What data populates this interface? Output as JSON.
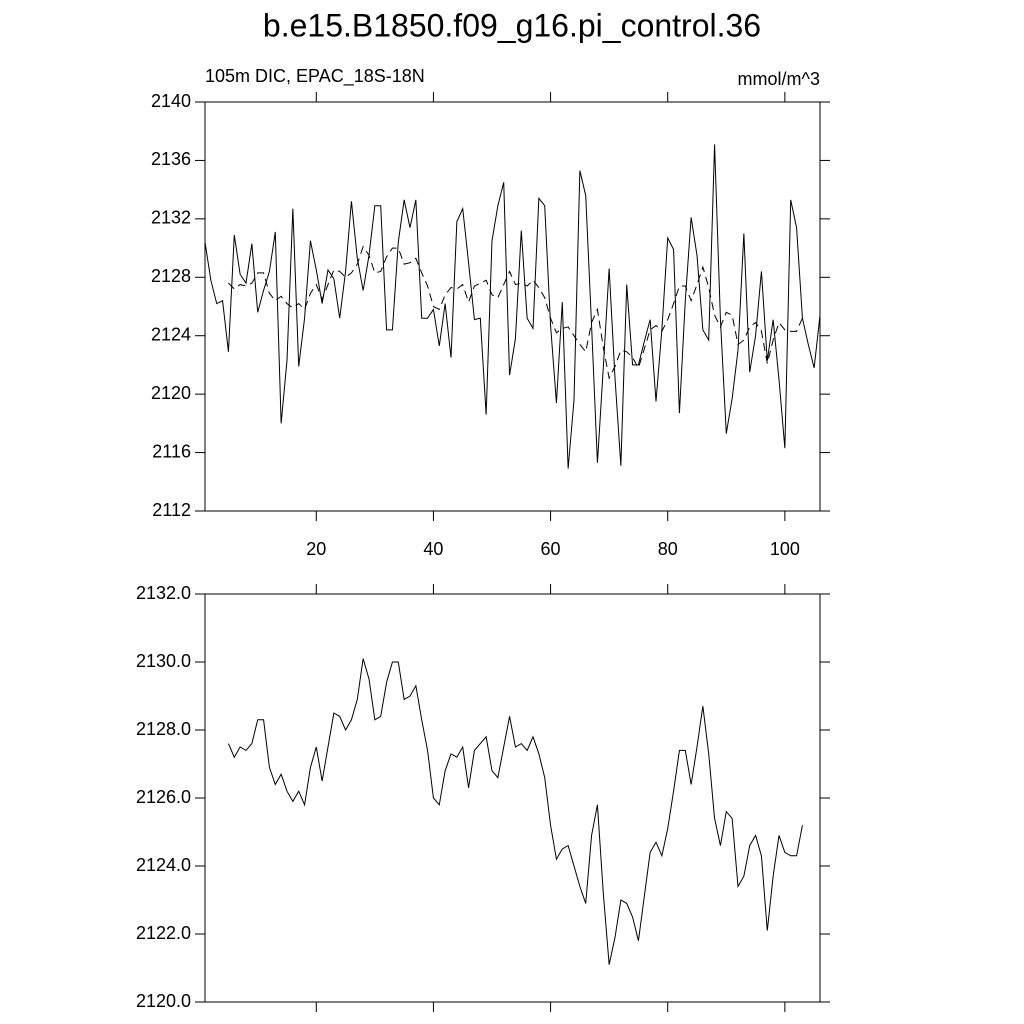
{
  "chart_data": [
    {
      "type": "line",
      "title": "b.e15.B1850.f09_g16.pi_control.36",
      "left_label": "105m DIC, EPAC_18S-18N",
      "right_label": "mmol/m^3",
      "x": [
        1,
        2,
        3,
        4,
        5,
        6,
        7,
        8,
        9,
        10,
        11,
        12,
        13,
        14,
        15,
        16,
        17,
        18,
        19,
        20,
        21,
        22,
        23,
        24,
        25,
        26,
        27,
        28,
        29,
        30,
        31,
        32,
        33,
        34,
        35,
        36,
        37,
        38,
        39,
        40,
        41,
        42,
        43,
        44,
        45,
        46,
        47,
        48,
        49,
        50,
        51,
        52,
        53,
        54,
        55,
        56,
        57,
        58,
        59,
        60,
        61,
        62,
        63,
        64,
        65,
        66,
        67,
        68,
        69,
        70,
        71,
        72,
        73,
        74,
        75,
        76,
        77,
        78,
        79,
        80,
        81,
        82,
        83,
        84,
        85,
        86,
        87,
        88,
        89,
        90,
        91,
        92,
        93,
        94,
        95,
        96,
        97,
        98,
        99,
        100,
        101,
        102,
        103,
        104,
        105,
        106
      ],
      "series": [
        {
          "color": "#000000",
          "dash": false,
          "values": [
            2130.4,
            2127.8,
            2126.2,
            2126.4,
            2122.9,
            2130.9,
            2128.2,
            2127.6,
            2130.3,
            2125.6,
            2127.1,
            2128.4,
            2131.1,
            2118.0,
            2122.3,
            2132.7,
            2121.9,
            2125.2,
            2130.5,
            2128.5,
            2126.2,
            2128.5,
            2127.9,
            2125.2,
            2128.4,
            2133.2,
            2129.3,
            2127.1,
            2129.5,
            2132.9,
            2132.9,
            2124.4,
            2124.4,
            2130.4,
            2133.3,
            2131.4,
            2133.3,
            2125.2,
            2125.2,
            2125.8,
            2123.3,
            2126.2,
            2122.5,
            2131.8,
            2132.7,
            2129.0,
            2125.1,
            2125.2,
            2118.6,
            2130.5,
            2132.9,
            2134.5,
            2121.3,
            2123.8,
            2131.2,
            2125.2,
            2124.5,
            2133.4,
            2132.9,
            2124.7,
            2119.4,
            2126.3,
            2114.9,
            2119.6,
            2135.3,
            2133.6,
            2124.7,
            2115.3,
            2121.8,
            2128.6,
            2121.1,
            2115.1,
            2127.5,
            2122.0,
            2122.0,
            2123.6,
            2125.1,
            2119.5,
            2124.4,
            2130.7,
            2129.9,
            2118.7,
            2126.4,
            2132.1,
            2129.5,
            2124.4,
            2123.7,
            2137.1,
            2125.1,
            2117.3,
            2119.7,
            2123.0,
            2131.0,
            2121.5,
            2124.0,
            2128.4,
            2122.3,
            2125.1,
            2121.0,
            2116.3,
            2133.3,
            2131.4,
            2125.2,
            2123.4,
            2121.8,
            2125.4
          ]
        },
        {
          "color": "#000000",
          "dash": true,
          "values": [
            null,
            null,
            null,
            null,
            2127.6,
            2127.2,
            2127.5,
            2127.4,
            2127.6,
            2128.3,
            2128.3,
            2126.9,
            2126.4,
            2126.7,
            2126.2,
            2125.9,
            2126.2,
            2125.8,
            2126.9,
            2127.5,
            2126.5,
            2127.5,
            2128.5,
            2128.4,
            2128.0,
            2128.3,
            2128.9,
            2130.1,
            2129.5,
            2128.3,
            2128.4,
            2129.4,
            2130.0,
            2130.0,
            2128.9,
            2129.0,
            2129.3,
            2128.3,
            2127.4,
            2126.0,
            2125.8,
            2126.8,
            2127.3,
            2127.2,
            2127.5,
            2126.3,
            2127.4,
            2127.6,
            2127.8,
            2126.8,
            2126.6,
            2127.5,
            2128.4,
            2127.5,
            2127.6,
            2127.4,
            2127.8,
            2127.3,
            2126.6,
            2125.2,
            2124.2,
            2124.5,
            2124.6,
            2124.0,
            2123.4,
            2122.9,
            2124.9,
            2125.8,
            2123.2,
            2121.1,
            2121.9,
            2123.0,
            2122.9,
            2122.5,
            2121.8,
            2123.1,
            2124.4,
            2124.7,
            2124.3,
            2125.1,
            2126.2,
            2127.4,
            2127.4,
            2126.4,
            2127.5,
            2128.7,
            2127.3,
            2125.4,
            2124.6,
            2125.6,
            2125.4,
            2123.4,
            2123.7,
            2124.6,
            2124.9,
            2124.3,
            2122.1,
            2123.7,
            2124.9,
            2124.4,
            2124.3,
            2124.3,
            2125.2,
            null,
            null,
            null
          ]
        }
      ],
      "xlim": [
        1,
        106
      ],
      "xticks": [
        20,
        40,
        60,
        80,
        100
      ],
      "ylim": [
        2112,
        2140
      ],
      "yticks": [
        2112,
        2116,
        2120,
        2124,
        2128,
        2132,
        2136,
        2140
      ]
    },
    {
      "type": "line",
      "x": [
        5,
        6,
        7,
        8,
        9,
        10,
        11,
        12,
        13,
        14,
        15,
        16,
        17,
        18,
        19,
        20,
        21,
        22,
        23,
        24,
        25,
        26,
        27,
        28,
        29,
        30,
        31,
        32,
        33,
        34,
        35,
        36,
        37,
        38,
        39,
        40,
        41,
        42,
        43,
        44,
        45,
        46,
        47,
        48,
        49,
        50,
        51,
        52,
        53,
        54,
        55,
        56,
        57,
        58,
        59,
        60,
        61,
        62,
        63,
        64,
        65,
        66,
        67,
        68,
        69,
        70,
        71,
        72,
        73,
        74,
        75,
        76,
        77,
        78,
        79,
        80,
        81,
        82,
        83,
        84,
        85,
        86,
        87,
        88,
        89,
        90,
        91,
        92,
        93,
        94,
        95,
        96,
        97,
        98,
        99,
        100,
        101,
        102,
        103
      ],
      "series": [
        {
          "color": "#000000",
          "dash": false,
          "values": [
            2127.6,
            2127.2,
            2127.5,
            2127.4,
            2127.6,
            2128.3,
            2128.3,
            2126.9,
            2126.4,
            2126.7,
            2126.2,
            2125.9,
            2126.2,
            2125.8,
            2126.9,
            2127.5,
            2126.5,
            2127.5,
            2128.5,
            2128.4,
            2128.0,
            2128.3,
            2128.9,
            2130.1,
            2129.5,
            2128.3,
            2128.4,
            2129.4,
            2130.0,
            2130.0,
            2128.9,
            2129.0,
            2129.3,
            2128.3,
            2127.4,
            2126.0,
            2125.8,
            2126.8,
            2127.3,
            2127.2,
            2127.5,
            2126.3,
            2127.4,
            2127.6,
            2127.8,
            2126.8,
            2126.6,
            2127.5,
            2128.4,
            2127.5,
            2127.6,
            2127.4,
            2127.8,
            2127.3,
            2126.6,
            2125.2,
            2124.2,
            2124.5,
            2124.6,
            2124.0,
            2123.4,
            2122.9,
            2124.9,
            2125.8,
            2123.2,
            2121.1,
            2121.9,
            2123.0,
            2122.9,
            2122.5,
            2121.8,
            2123.1,
            2124.4,
            2124.7,
            2124.3,
            2125.1,
            2126.2,
            2127.4,
            2127.4,
            2126.4,
            2127.5,
            2128.7,
            2127.3,
            2125.4,
            2124.6,
            2125.6,
            2125.4,
            2123.4,
            2123.7,
            2124.6,
            2124.9,
            2124.3,
            2122.1,
            2123.7,
            2124.9,
            2124.4,
            2124.3,
            2124.3,
            2125.2
          ]
        }
      ],
      "xlim": [
        1,
        106
      ],
      "xticks": [
        20,
        40,
        60,
        80,
        100
      ],
      "ylim": [
        2120,
        2132
      ],
      "yticks": [
        {
          "value": 2120,
          "label": "2120.0"
        },
        {
          "value": 2122,
          "label": "2122.0"
        },
        {
          "value": 2124,
          "label": "2124.0"
        },
        {
          "value": 2126,
          "label": "2126.0"
        },
        {
          "value": 2128,
          "label": "2128.0"
        },
        {
          "value": 2130,
          "label": "2130.0"
        },
        {
          "value": 2132,
          "label": "2132.0"
        }
      ]
    }
  ]
}
